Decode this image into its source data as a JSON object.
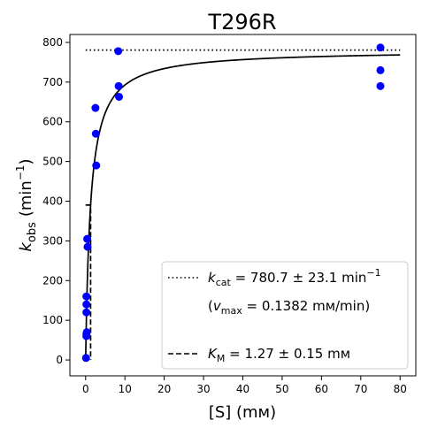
{
  "chart_data": {
    "type": "scatter",
    "title": "T296R",
    "xlabel": "[S] (mм)",
    "ylabel": "k_obs (min⁻¹)",
    "ylabel_main": "k",
    "ylabel_sub": "obs",
    "ylabel_unit": "(min",
    "ylabel_exp": "−1",
    "ylabel_close": ")",
    "xlim": [
      -4,
      84
    ],
    "ylim": [
      -40,
      820
    ],
    "xticks": [
      0,
      10,
      20,
      30,
      40,
      50,
      60,
      70,
      80
    ],
    "yticks": [
      0,
      100,
      200,
      300,
      400,
      500,
      600,
      700,
      800
    ],
    "grid": false,
    "legend_position": "lower-right",
    "series": [
      {
        "type": "scatter",
        "color": "#0000ff",
        "x": [
          0.1,
          0.2,
          0.2,
          0.2,
          0.2,
          0.2,
          0.3,
          0.4,
          0.5,
          2.5,
          2.6,
          2.7,
          8.3,
          8.4,
          8.5,
          75,
          75,
          75
        ],
        "y": [
          5,
          60,
          65,
          120,
          140,
          160,
          70,
          305,
          285,
          635,
          570,
          490,
          778,
          690,
          663,
          787,
          730,
          690
        ]
      },
      {
        "type": "line",
        "style": "solid",
        "color": "#000000",
        "model": "michaelis-menten",
        "kcat": 780.7,
        "km": 1.27,
        "x_range": [
          0,
          80
        ]
      },
      {
        "type": "line",
        "style": "dotted",
        "color": "#000000",
        "x": [
          0,
          80
        ],
        "y": [
          780.7,
          780.7
        ]
      },
      {
        "type": "line",
        "style": "dashed",
        "color": "#000000",
        "x": [
          0,
          1.27,
          1.27
        ],
        "y": [
          390.35,
          390.35,
          0
        ]
      }
    ],
    "legend": {
      "kcat": {
        "sym": "k",
        "sub": "cat",
        "text": " = 780.7 ± 23.1 min",
        "exp": "−1"
      },
      "vmax": {
        "open": "(",
        "sym": "v",
        "sub": "max",
        "text": " = 0.1382 mм/min)"
      },
      "km": {
        "sym": "K",
        "sub": "M",
        "text": " = 1.27 ± 0.15 mм"
      }
    }
  }
}
